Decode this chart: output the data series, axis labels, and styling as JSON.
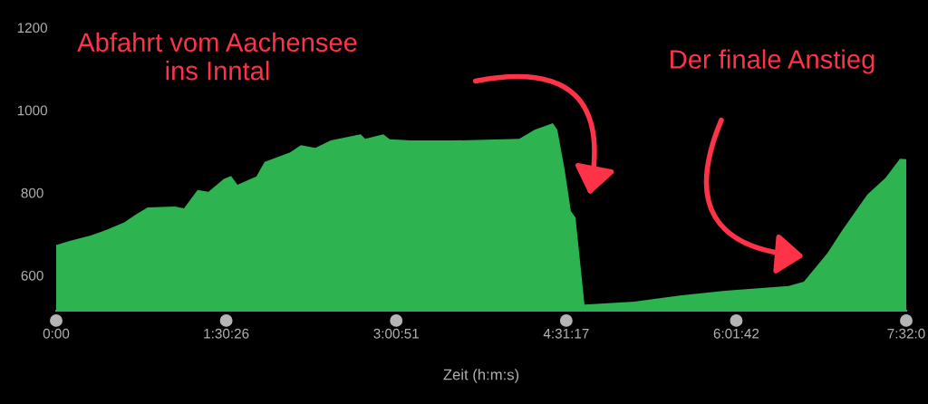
{
  "chart_data": {
    "type": "area",
    "xlabel": "Zeit (h:m:s)",
    "x": [
      0,
      0.118,
      0.305,
      0.45,
      0.603,
      0.707,
      0.811,
      1.052,
      1.133,
      1.253,
      1.35,
      1.486,
      1.55,
      1.607,
      1.775,
      1.847,
      2.073,
      2.169,
      2.297,
      2.434,
      2.699,
      2.739,
      2.9,
      2.956,
      3.141,
      3.518,
      4.105,
      4.241,
      4.402,
      4.442,
      4.506,
      4.562,
      4.603,
      4.683,
      5.125,
      5.527,
      5.928,
      6.491,
      6.627,
      6.836,
      6.973,
      7.19,
      7.35,
      7.479,
      7.535
    ],
    "series": [
      {
        "color": "#2db350",
        "values": [
          677,
          687,
          700,
          714,
          732,
          751,
          768,
          770,
          766,
          810,
          806,
          837,
          844,
          823,
          843,
          878,
          901,
          919,
          912,
          930,
          945,
          934,
          945,
          933,
          930,
          930,
          934,
          956,
          972,
          956,
          861,
          759,
          744,
          533,
          540,
          555,
          566,
          578,
          588,
          657,
          715,
          799,
          839,
          886,
          885
        ]
      }
    ],
    "xlim": [
      0,
      7.535
    ],
    "ylim": [
      518,
      1200
    ],
    "xticks": [
      {
        "value": 0,
        "label": "0:00"
      },
      {
        "value": 1.5072,
        "label": "1:30:26"
      },
      {
        "value": 3.0142,
        "label": "3:00:51"
      },
      {
        "value": 4.5214,
        "label": "4:31:17"
      },
      {
        "value": 6.0283,
        "label": "6:01:42"
      },
      {
        "value": 7.535,
        "label": "7:32:0"
      }
    ],
    "yticks": [
      600,
      800,
      1000,
      1200
    ],
    "grid": false,
    "legend": false,
    "annotations": [
      "Abfahrt vom Aachensee\nins Inntal",
      "Der finale Anstieg"
    ]
  }
}
